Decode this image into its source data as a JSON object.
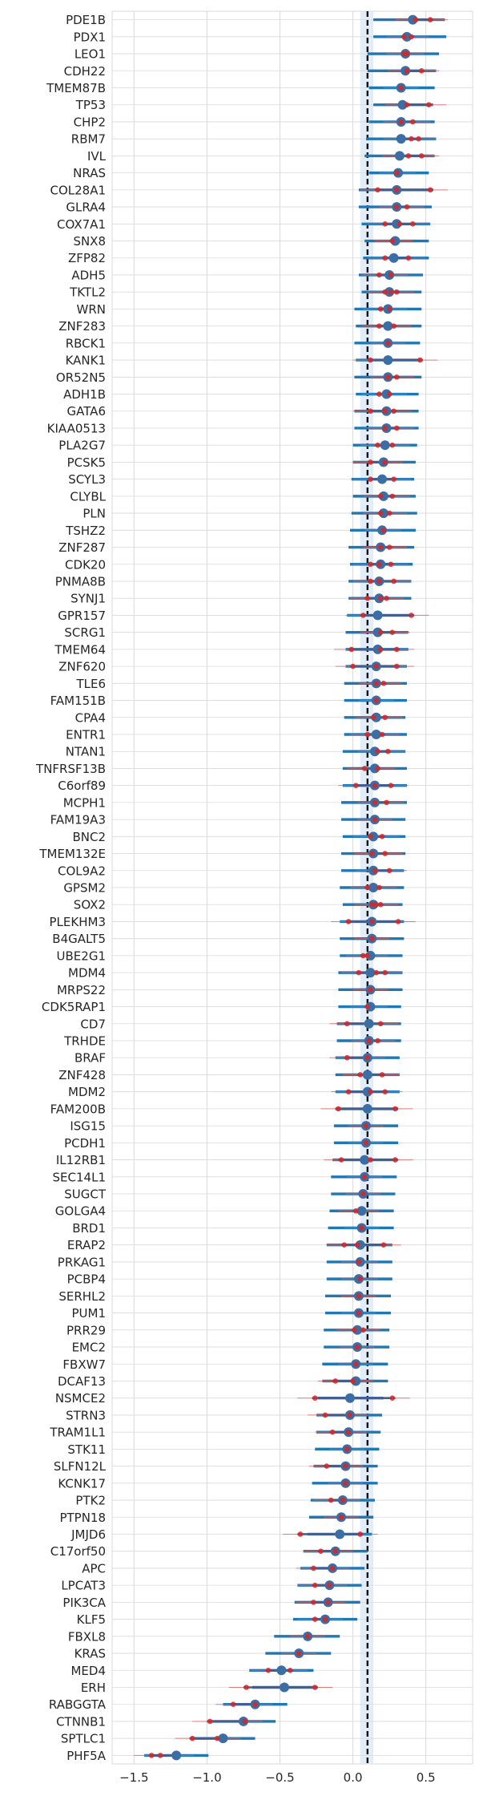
{
  "chart_data": {
    "type": "forest",
    "title": "",
    "xlabel": "",
    "ylabel": "",
    "xlim": [
      -1.65,
      0.82
    ],
    "xticks": [
      -1.5,
      -1.0,
      -0.5,
      0.0,
      0.5
    ],
    "xtick_labels": [
      "−1.5",
      "−1.0",
      "−0.5",
      "0.0",
      "0.5"
    ],
    "reference_line": 0.1,
    "shaded_band": [
      0.05,
      0.14
    ],
    "grid": true,
    "colors": {
      "ci_line": "#1f77b4",
      "ci_inner": "#4a5a8a",
      "point": "#3a6ea5",
      "sub_point": "#d62728",
      "ref_line": "#111111",
      "band": "#dbe9f6",
      "grid": "#d9d9d9"
    },
    "rows": [
      {
        "gene": "PDE1B",
        "est": 0.41,
        "lo": 0.14,
        "hi": 0.63,
        "sub": [
          0.43,
          0.53
        ]
      },
      {
        "gene": "PDX1",
        "est": 0.37,
        "lo": 0.14,
        "hi": 0.64,
        "sub": [
          0.35,
          0.4
        ]
      },
      {
        "gene": "LEO1",
        "est": 0.36,
        "lo": 0.1,
        "hi": 0.59,
        "sub": [
          0.35,
          0.37
        ]
      },
      {
        "gene": "CDH22",
        "est": 0.36,
        "lo": 0.1,
        "hi": 0.57,
        "sub": [
          0.37,
          0.47
        ]
      },
      {
        "gene": "TMEM87B",
        "est": 0.33,
        "lo": 0.11,
        "hi": 0.56,
        "sub": [
          0.33
        ]
      },
      {
        "gene": "TP53",
        "est": 0.34,
        "lo": 0.14,
        "hi": 0.55,
        "sub": [
          0.37,
          0.52
        ]
      },
      {
        "gene": "CHP2",
        "est": 0.33,
        "lo": 0.11,
        "hi": 0.56,
        "sub": [
          0.33,
          0.41
        ]
      },
      {
        "gene": "RBM7",
        "est": 0.33,
        "lo": 0.09,
        "hi": 0.57,
        "sub": [
          0.4,
          0.45
        ]
      },
      {
        "gene": "IVL",
        "est": 0.32,
        "lo": 0.08,
        "hi": 0.56,
        "sub": [
          0.38,
          0.47
        ]
      },
      {
        "gene": "NRAS",
        "est": 0.31,
        "lo": 0.11,
        "hi": 0.52,
        "sub": [
          0.3
        ]
      },
      {
        "gene": "COL28A1",
        "est": 0.3,
        "lo": 0.04,
        "hi": 0.55,
        "sub": [
          0.17,
          0.3,
          0.53
        ]
      },
      {
        "gene": "GLRA4",
        "est": 0.3,
        "lo": 0.04,
        "hi": 0.54,
        "sub": [
          0.3,
          0.37
        ]
      },
      {
        "gene": "COX7A1",
        "est": 0.3,
        "lo": 0.06,
        "hi": 0.53,
        "sub": [
          0.22,
          0.32,
          0.41
        ]
      },
      {
        "gene": "SNX8",
        "est": 0.29,
        "lo": 0.08,
        "hi": 0.52,
        "sub": [
          0.27
        ]
      },
      {
        "gene": "ZFP82",
        "est": 0.28,
        "lo": 0.07,
        "hi": 0.52,
        "sub": [
          0.22,
          0.38
        ]
      },
      {
        "gene": "ADH5",
        "est": 0.25,
        "lo": 0.04,
        "hi": 0.48,
        "sub": [
          0.18,
          0.26
        ]
      },
      {
        "gene": "TKTL2",
        "est": 0.25,
        "lo": 0.06,
        "hi": 0.47,
        "sub": [
          0.22,
          0.26,
          0.3
        ]
      },
      {
        "gene": "WRN",
        "est": 0.24,
        "lo": 0.01,
        "hi": 0.47,
        "sub": [
          0.19,
          0.25
        ]
      },
      {
        "gene": "ZNF283",
        "est": 0.24,
        "lo": 0.02,
        "hi": 0.47,
        "sub": [
          0.18,
          0.28
        ]
      },
      {
        "gene": "RBCK1",
        "est": 0.24,
        "lo": 0.01,
        "hi": 0.46,
        "sub": [
          0.24
        ]
      },
      {
        "gene": "KANK1",
        "est": 0.24,
        "lo": 0.02,
        "hi": 0.46,
        "sub": [
          0.12,
          0.46
        ]
      },
      {
        "gene": "OR52N5",
        "est": 0.24,
        "lo": 0.01,
        "hi": 0.47,
        "sub": [
          0.24,
          0.3
        ]
      },
      {
        "gene": "ADH1B",
        "est": 0.23,
        "lo": 0.02,
        "hi": 0.45,
        "sub": [
          0.18,
          0.25
        ]
      },
      {
        "gene": "GATA6",
        "est": 0.23,
        "lo": 0.01,
        "hi": 0.45,
        "sub": [
          0.12,
          0.22,
          0.28
        ]
      },
      {
        "gene": "KIAA0513",
        "est": 0.23,
        "lo": 0.01,
        "hi": 0.45,
        "sub": [
          0.22,
          0.3
        ]
      },
      {
        "gene": "PLA2G7",
        "est": 0.22,
        "lo": 0.0,
        "hi": 0.44,
        "sub": [
          0.17,
          0.27
        ]
      },
      {
        "gene": "PCSK5",
        "est": 0.21,
        "lo": 0.0,
        "hi": 0.43,
        "sub": [
          0.12,
          0.22
        ]
      },
      {
        "gene": "SCYL3",
        "est": 0.2,
        "lo": -0.01,
        "hi": 0.42,
        "sub": [
          0.12,
          0.28
        ]
      },
      {
        "gene": "CLYBL",
        "est": 0.21,
        "lo": 0.0,
        "hi": 0.43,
        "sub": [
          0.19,
          0.27
        ]
      },
      {
        "gene": "PLN",
        "est": 0.21,
        "lo": -0.01,
        "hi": 0.44,
        "sub": [
          0.19,
          0.25
        ]
      },
      {
        "gene": "TSHZ2",
        "est": 0.2,
        "lo": -0.02,
        "hi": 0.43,
        "sub": [
          0.21
        ]
      },
      {
        "gene": "ZNF287",
        "est": 0.19,
        "lo": -0.03,
        "hi": 0.42,
        "sub": [
          0.19,
          0.25
        ]
      },
      {
        "gene": "CDK20",
        "est": 0.19,
        "lo": -0.02,
        "hi": 0.41,
        "sub": [
          0.12,
          0.18,
          0.26
        ]
      },
      {
        "gene": "PNMA8B",
        "est": 0.18,
        "lo": -0.03,
        "hi": 0.4,
        "sub": [
          0.12,
          0.18,
          0.28
        ]
      },
      {
        "gene": "SYNJ1",
        "est": 0.18,
        "lo": -0.03,
        "hi": 0.4,
        "sub": [
          0.1,
          0.19,
          0.23
        ]
      },
      {
        "gene": "GPR157",
        "est": 0.17,
        "lo": -0.04,
        "hi": 0.39,
        "sub": [
          0.07,
          0.4
        ]
      },
      {
        "gene": "SCRG1",
        "est": 0.17,
        "lo": -0.05,
        "hi": 0.38,
        "sub": [
          0.19,
          0.27
        ]
      },
      {
        "gene": "TMEM64",
        "est": 0.17,
        "lo": -0.05,
        "hi": 0.38,
        "sub": [
          -0.01,
          0.19,
          0.3
        ]
      },
      {
        "gene": "ZNF620",
        "est": 0.16,
        "lo": -0.05,
        "hi": 0.37,
        "sub": [
          0.0,
          0.16,
          0.3
        ]
      },
      {
        "gene": "TLE6",
        "est": 0.16,
        "lo": -0.06,
        "hi": 0.37,
        "sub": [
          0.16,
          0.21
        ]
      },
      {
        "gene": "FAM151B",
        "est": 0.16,
        "lo": -0.06,
        "hi": 0.37,
        "sub": [
          0.16
        ]
      },
      {
        "gene": "CPA4",
        "est": 0.16,
        "lo": -0.06,
        "hi": 0.36,
        "sub": [
          0.14,
          0.22
        ]
      },
      {
        "gene": "ENTR1",
        "est": 0.16,
        "lo": -0.06,
        "hi": 0.37,
        "sub": [
          0.1,
          0.2
        ]
      },
      {
        "gene": "NTAN1",
        "est": 0.15,
        "lo": -0.07,
        "hi": 0.36,
        "sub": [
          0.17,
          0.24
        ]
      },
      {
        "gene": "TNFRSF13B",
        "est": 0.15,
        "lo": -0.07,
        "hi": 0.37,
        "sub": [
          0.08,
          0.17
        ]
      },
      {
        "gene": "C6orf89",
        "est": 0.15,
        "lo": -0.07,
        "hi": 0.37,
        "sub": [
          0.02,
          0.15,
          0.26
        ]
      },
      {
        "gene": "MCPH1",
        "est": 0.15,
        "lo": -0.08,
        "hi": 0.37,
        "sub": [
          0.15,
          0.23
        ]
      },
      {
        "gene": "FAM19A3",
        "est": 0.15,
        "lo": -0.08,
        "hi": 0.36,
        "sub": [
          0.15
        ]
      },
      {
        "gene": "BNC2",
        "est": 0.14,
        "lo": -0.07,
        "hi": 0.36,
        "sub": [
          0.12,
          0.2
        ]
      },
      {
        "gene": "TMEM132E",
        "est": 0.14,
        "lo": -0.08,
        "hi": 0.36,
        "sub": [
          0.13,
          0.22
        ]
      },
      {
        "gene": "COL9A2",
        "est": 0.14,
        "lo": -0.08,
        "hi": 0.35,
        "sub": [
          0.15,
          0.25
        ]
      },
      {
        "gene": "GPSM2",
        "est": 0.14,
        "lo": -0.09,
        "hi": 0.35,
        "sub": [
          0.1,
          0.18
        ]
      },
      {
        "gene": "SOX2",
        "est": 0.14,
        "lo": -0.07,
        "hi": 0.34,
        "sub": [
          0.13,
          0.16,
          0.19
        ]
      },
      {
        "gene": "PLEKHM3",
        "est": 0.13,
        "lo": -0.09,
        "hi": 0.35,
        "sub": [
          -0.03,
          0.13,
          0.31
        ]
      },
      {
        "gene": "B4GALT5",
        "est": 0.13,
        "lo": -0.09,
        "hi": 0.35,
        "sub": [
          0.13
        ]
      },
      {
        "gene": "UBE2G1",
        "est": 0.12,
        "lo": -0.09,
        "hi": 0.34,
        "sub": [
          0.07,
          0.1
        ]
      },
      {
        "gene": "MDM4",
        "est": 0.12,
        "lo": -0.1,
        "hi": 0.34,
        "sub": [
          0.04,
          0.16,
          0.22
        ]
      },
      {
        "gene": "MRPS22",
        "est": 0.12,
        "lo": -0.1,
        "hi": 0.34,
        "sub": [
          0.12
        ]
      },
      {
        "gene": "CDK5RAP1",
        "est": 0.12,
        "lo": -0.1,
        "hi": 0.33,
        "sub": [
          0.1
        ]
      },
      {
        "gene": "CD7",
        "est": 0.11,
        "lo": -0.11,
        "hi": 0.33,
        "sub": [
          -0.04,
          0.19
        ]
      },
      {
        "gene": "TRHDE",
        "est": 0.11,
        "lo": -0.11,
        "hi": 0.33,
        "sub": [
          0.11,
          0.17
        ]
      },
      {
        "gene": "BRAF",
        "est": 0.1,
        "lo": -0.12,
        "hi": 0.32,
        "sub": [
          -0.04,
          0.1
        ]
      },
      {
        "gene": "ZNF428",
        "est": 0.1,
        "lo": -0.12,
        "hi": 0.32,
        "sub": [
          0.05,
          0.2
        ]
      },
      {
        "gene": "MDM2",
        "est": 0.1,
        "lo": -0.12,
        "hi": 0.32,
        "sub": [
          -0.03,
          0.12,
          0.22
        ]
      },
      {
        "gene": "FAM200B",
        "est": 0.1,
        "lo": -0.12,
        "hi": 0.31,
        "sub": [
          -0.1,
          0.29
        ]
      },
      {
        "gene": "ISG15",
        "est": 0.09,
        "lo": -0.13,
        "hi": 0.31,
        "sub": [
          0.09
        ]
      },
      {
        "gene": "PCDH1",
        "est": 0.09,
        "lo": -0.13,
        "hi": 0.31,
        "sub": [
          0.09
        ]
      },
      {
        "gene": "IL12RB1",
        "est": 0.08,
        "lo": -0.14,
        "hi": 0.3,
        "sub": [
          -0.08,
          0.12,
          0.29
        ]
      },
      {
        "gene": "SEC14L1",
        "est": 0.08,
        "lo": -0.15,
        "hi": 0.3,
        "sub": [
          0.08
        ]
      },
      {
        "gene": "SUGCT",
        "est": 0.07,
        "lo": -0.15,
        "hi": 0.29,
        "sub": [
          0.07
        ]
      },
      {
        "gene": "GOLGA4",
        "est": 0.06,
        "lo": -0.16,
        "hi": 0.28,
        "sub": [
          0.02
        ]
      },
      {
        "gene": "BRD1",
        "est": 0.06,
        "lo": -0.17,
        "hi": 0.28,
        "sub": [
          0.06
        ]
      },
      {
        "gene": "ERAP2",
        "est": 0.05,
        "lo": -0.18,
        "hi": 0.27,
        "sub": [
          -0.06,
          0.03,
          0.21
        ]
      },
      {
        "gene": "PRKAG1",
        "est": 0.05,
        "lo": -0.18,
        "hi": 0.27,
        "sub": [
          0.04
        ]
      },
      {
        "gene": "PCBP4",
        "est": 0.04,
        "lo": -0.18,
        "hi": 0.27,
        "sub": [
          0.05
        ]
      },
      {
        "gene": "SERHL2",
        "est": 0.04,
        "lo": -0.19,
        "hi": 0.26,
        "sub": [
          0.04
        ]
      },
      {
        "gene": "PUM1",
        "est": 0.04,
        "lo": -0.19,
        "hi": 0.26,
        "sub": [
          0.04
        ]
      },
      {
        "gene": "PRR29",
        "est": 0.03,
        "lo": -0.2,
        "hi": 0.25,
        "sub": [
          0.01,
          0.07
        ]
      },
      {
        "gene": "EMC2",
        "est": 0.03,
        "lo": -0.2,
        "hi": 0.25,
        "sub": [
          0.03
        ]
      },
      {
        "gene": "FBXW7",
        "est": 0.02,
        "lo": -0.21,
        "hi": 0.24,
        "sub": [
          0.02
        ]
      },
      {
        "gene": "DCAF13",
        "est": 0.02,
        "lo": -0.21,
        "hi": 0.24,
        "sub": [
          -0.12,
          0.0
        ]
      },
      {
        "gene": "NSMCE2",
        "est": -0.02,
        "lo": -0.24,
        "hi": 0.21,
        "sub": [
          -0.26,
          0.27
        ]
      },
      {
        "gene": "STRN3",
        "est": -0.02,
        "lo": -0.25,
        "hi": 0.2,
        "sub": [
          -0.19,
          -0.02
        ]
      },
      {
        "gene": "TRAM1L1",
        "est": -0.03,
        "lo": -0.25,
        "hi": 0.19,
        "sub": [
          -0.14,
          -0.03
        ]
      },
      {
        "gene": "STK11",
        "est": -0.04,
        "lo": -0.26,
        "hi": 0.18,
        "sub": [
          -0.04
        ]
      },
      {
        "gene": "SLFN12L",
        "est": -0.05,
        "lo": -0.27,
        "hi": 0.17,
        "sub": [
          -0.18,
          -0.05
        ]
      },
      {
        "gene": "KCNK17",
        "est": -0.05,
        "lo": -0.28,
        "hi": 0.17,
        "sub": [
          -0.05
        ]
      },
      {
        "gene": "PTK2",
        "est": -0.07,
        "lo": -0.29,
        "hi": 0.15,
        "sub": [
          -0.15,
          -0.07
        ]
      },
      {
        "gene": "PTPN18",
        "est": -0.08,
        "lo": -0.3,
        "hi": 0.14,
        "sub": [
          -0.08
        ]
      },
      {
        "gene": "JMJD6",
        "est": -0.09,
        "lo": -0.31,
        "hi": 0.13,
        "sub": [
          -0.36,
          0.05
        ]
      },
      {
        "gene": "C17orf50",
        "est": -0.12,
        "lo": -0.34,
        "hi": 0.1,
        "sub": [
          -0.22,
          -0.12
        ]
      },
      {
        "gene": "APC",
        "est": -0.14,
        "lo": -0.36,
        "hi": 0.08,
        "sub": [
          -0.27,
          -0.14
        ]
      },
      {
        "gene": "LPCAT3",
        "est": -0.16,
        "lo": -0.38,
        "hi": 0.06,
        "sub": [
          -0.26,
          -0.16
        ]
      },
      {
        "gene": "PIK3CA",
        "est": -0.17,
        "lo": -0.4,
        "hi": 0.05,
        "sub": [
          -0.27,
          -0.17
        ]
      },
      {
        "gene": "KLF5",
        "est": -0.19,
        "lo": -0.41,
        "hi": 0.03,
        "sub": [
          -0.26,
          -0.19
        ]
      },
      {
        "gene": "FBXL8",
        "est": -0.31,
        "lo": -0.54,
        "hi": -0.09,
        "sub": [
          -0.31
        ]
      },
      {
        "gene": "KRAS",
        "est": -0.37,
        "lo": -0.6,
        "hi": -0.15,
        "sub": [
          -0.37
        ]
      },
      {
        "gene": "MED4",
        "est": -0.49,
        "lo": -0.71,
        "hi": -0.27,
        "sub": [
          -0.58,
          -0.43
        ]
      },
      {
        "gene": "ERH",
        "est": -0.47,
        "lo": -0.69,
        "hi": -0.25,
        "sub": [
          -0.73,
          -0.26
        ]
      },
      {
        "gene": "RABGGTA",
        "est": -0.67,
        "lo": -0.89,
        "hi": -0.45,
        "sub": [
          -0.82,
          -0.67
        ]
      },
      {
        "gene": "CTNNB1",
        "est": -0.75,
        "lo": -0.97,
        "hi": -0.53,
        "sub": [
          -0.98,
          -0.74
        ]
      },
      {
        "gene": "SPTLC1",
        "est": -0.89,
        "lo": -1.11,
        "hi": -0.67,
        "sub": [
          -1.1,
          -0.93
        ]
      },
      {
        "gene": "PHF5A",
        "est": -1.21,
        "lo": -1.43,
        "hi": -0.99,
        "sub": [
          -1.38,
          -1.32
        ]
      }
    ]
  }
}
